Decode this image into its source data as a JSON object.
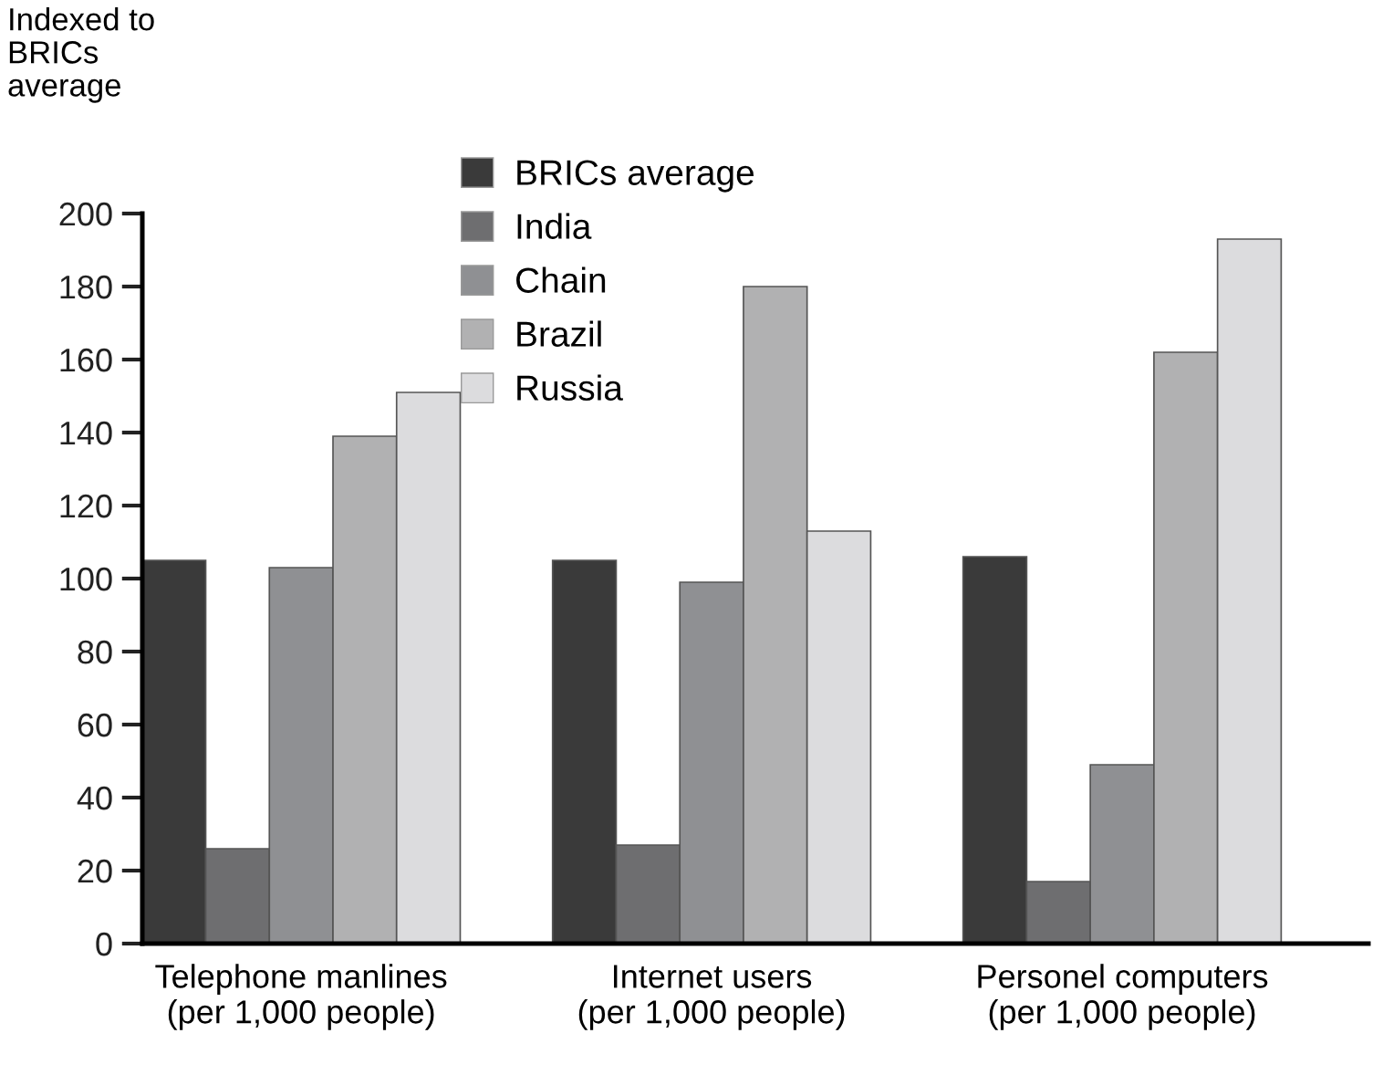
{
  "chart_data": {
    "type": "bar",
    "title": "Indexed to\nBRICs\naverage",
    "categories": [
      "Telephone manlines\n(per 1,000 people)",
      "Internet users\n(per 1,000 people)",
      "Personel computers\n(per 1,000 people)"
    ],
    "series": [
      {
        "name": "BRICs average",
        "color": "#3a3a3a",
        "values": [
          105,
          105,
          106
        ]
      },
      {
        "name": "India",
        "color": "#6e6e70",
        "values": [
          26,
          27,
          17
        ]
      },
      {
        "name": "Chain",
        "color": "#8f9093",
        "values": [
          103,
          99,
          49
        ]
      },
      {
        "name": "Brazil",
        "color": "#b1b1b2",
        "values": [
          139,
          180,
          162
        ]
      },
      {
        "name": "Russia",
        "color": "#dcdcde",
        "values": [
          151,
          113,
          193
        ]
      }
    ],
    "ylim": [
      0,
      200
    ],
    "yticks": [
      0,
      20,
      40,
      60,
      80,
      100,
      120,
      140,
      160,
      180,
      200
    ],
    "grid": false,
    "legend": "top"
  }
}
